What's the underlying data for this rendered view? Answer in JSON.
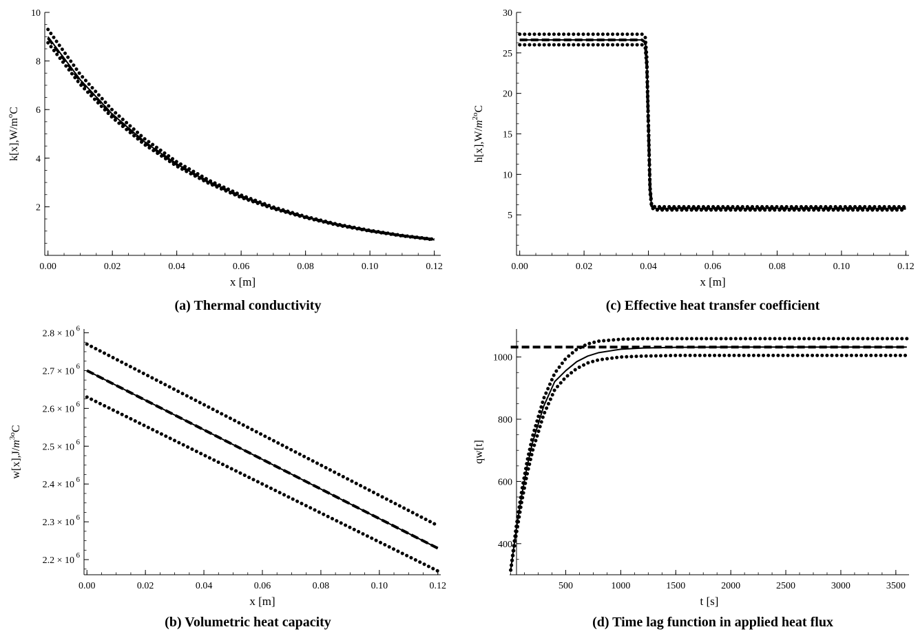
{
  "chart_data": [
    {
      "id": "a",
      "type": "line",
      "caption": "(a)   Thermal conductivity",
      "xlabel": "x [m]",
      "ylabel": "k[x],W/m",
      "ylabel_sup": "o",
      "ylabel_tail": "C",
      "xlim": [
        -0.001,
        0.122
      ],
      "ylim": [
        0.0,
        10.0
      ],
      "xticks": [
        0.0,
        0.02,
        0.04,
        0.06,
        0.08,
        0.1,
        0.12
      ],
      "xtick_labels": [
        "0.00",
        "0.02",
        "0.04",
        "0.06",
        "0.08",
        "0.10",
        "0.12"
      ],
      "yticks": [
        2,
        4,
        6,
        8,
        10
      ],
      "ytick_labels": [
        "2",
        "4",
        "6",
        "8",
        "10"
      ],
      "x": [
        0.0,
        0.01,
        0.02,
        0.03,
        0.04,
        0.05,
        0.06,
        0.07,
        0.08,
        0.09,
        0.1,
        0.11,
        0.12
      ],
      "series": [
        {
          "style": "solid",
          "values": [
            9.0,
            7.23,
            5.81,
            4.67,
            3.75,
            3.02,
            2.43,
            1.95,
            1.57,
            1.26,
            1.01,
            0.81,
            0.65
          ]
        },
        {
          "style": "dashed",
          "values": [
            8.95,
            7.19,
            5.78,
            4.65,
            3.74,
            3.01,
            2.42,
            1.95,
            1.57,
            1.26,
            1.01,
            0.81,
            0.65
          ]
        },
        {
          "style": "dotted",
          "values": [
            9.3,
            7.45,
            5.98,
            4.8,
            3.85,
            3.09,
            2.48,
            1.99,
            1.6,
            1.28,
            1.03,
            0.82,
            0.66
          ]
        },
        {
          "style": "dotted",
          "values": [
            8.75,
            7.04,
            5.67,
            4.56,
            3.67,
            2.96,
            2.38,
            1.92,
            1.55,
            1.24,
            1.0,
            0.8,
            0.64
          ]
        }
      ]
    },
    {
      "id": "c",
      "type": "line",
      "caption": "(c) Effective heat transfer coefficient",
      "xlabel": "x [m]",
      "ylabel": "h[x],W/",
      "ylabel_m": "m",
      "ylabel_sup": "2",
      "ylabel_sup2": "o",
      "ylabel_tail": "C",
      "xlim": [
        -0.001,
        0.121
      ],
      "ylim": [
        0,
        30
      ],
      "xticks": [
        0.0,
        0.02,
        0.04,
        0.06,
        0.08,
        0.1,
        0.12
      ],
      "xtick_labels": [
        "0.00",
        "0.02",
        "0.04",
        "0.06",
        "0.08",
        "0.10",
        "0.12"
      ],
      "yticks": [
        5,
        10,
        15,
        20,
        25,
        30
      ],
      "ytick_labels": [
        "5",
        "10",
        "15",
        "20",
        "25",
        "30"
      ],
      "x": [
        0.0,
        0.038,
        0.039,
        0.0395,
        0.04,
        0.0405,
        0.041,
        0.042,
        0.12
      ],
      "series": [
        {
          "style": "solid",
          "values": [
            26.6,
            26.6,
            26.4,
            24.0,
            16.0,
            8.0,
            6.0,
            5.8,
            5.8
          ]
        },
        {
          "style": "dashed",
          "values": [
            26.6,
            26.6,
            26.3,
            23.5,
            16.0,
            8.3,
            6.1,
            5.8,
            5.8
          ]
        },
        {
          "style": "dotted",
          "values": [
            27.3,
            27.3,
            27.0,
            24.5,
            16.5,
            8.5,
            6.2,
            6.0,
            6.0
          ]
        },
        {
          "style": "dotted",
          "values": [
            26.0,
            26.0,
            25.7,
            23.3,
            15.5,
            7.8,
            5.9,
            5.6,
            5.6
          ]
        }
      ]
    },
    {
      "id": "b",
      "type": "line",
      "caption": "(b) Volumetric heat capacity",
      "xlabel": "x [m]",
      "ylabel": "w[x],J/",
      "ylabel_m": "m",
      "ylabel_sup": "3",
      "ylabel_sup2": "o",
      "ylabel_tail": "C",
      "xlim": [
        -0.001,
        0.121
      ],
      "ylim": [
        2160000,
        2810000
      ],
      "xticks": [
        0.0,
        0.02,
        0.04,
        0.06,
        0.08,
        0.1,
        0.12
      ],
      "xtick_labels": [
        "0.00",
        "0.02",
        "0.04",
        "0.06",
        "0.08",
        "0.10",
        "0.12"
      ],
      "yticks": [
        2200000,
        2300000,
        2400000,
        2500000,
        2600000,
        2700000,
        2800000
      ],
      "ytick_labels": [
        "2.2 × 10",
        "2.3 × 10",
        "2.4 × 10",
        "2.5 × 10",
        "2.6 × 10",
        "2.7 × 10",
        "2.8 × 10"
      ],
      "ytick_exp": "6",
      "x": [
        0.0,
        0.12
      ],
      "series": [
        {
          "style": "solid",
          "values": [
            2700000,
            2230000
          ]
        },
        {
          "style": "dashed",
          "values": [
            2700000,
            2230000
          ]
        },
        {
          "style": "dotted",
          "values": [
            2770000,
            2290000
          ]
        },
        {
          "style": "dotted",
          "values": [
            2630000,
            2170000
          ]
        }
      ]
    },
    {
      "id": "d",
      "type": "line",
      "caption": "(d) Time lag function in applied heat flux",
      "xlabel": "t [s]",
      "ylabel": "qw[t]",
      "xlim": [
        -10,
        3620
      ],
      "ylim": [
        300,
        1090
      ],
      "xticks": [
        500,
        1000,
        1500,
        2000,
        2500,
        3000,
        3500
      ],
      "xtick_labels": [
        "500",
        "1000",
        "1500",
        "2000",
        "2500",
        "3000",
        "3500"
      ],
      "yticks": [
        400,
        600,
        800,
        1000
      ],
      "ytick_labels": [
        "400",
        "600",
        "800",
        "1000"
      ],
      "x": [
        0,
        50,
        100,
        150,
        200,
        300,
        400,
        500,
        600,
        700,
        800,
        1000,
        1200,
        1500,
        2000,
        3600
      ],
      "series": [
        {
          "style": "solid",
          "values": [
            315,
            445,
            555,
            650,
            727,
            842,
            921,
            956,
            985,
            1003,
            1014,
            1025,
            1029,
            1031,
            1032,
            1032
          ]
        },
        {
          "style": "dashed",
          "values": [
            1032,
            1032,
            1032,
            1032,
            1032,
            1032,
            1032,
            1032,
            1032,
            1032,
            1032,
            1032,
            1032,
            1032,
            1032,
            1032
          ]
        },
        {
          "style": "dotted",
          "values": [
            315,
            455,
            570,
            667,
            747,
            867,
            948,
            995,
            1025,
            1042,
            1051,
            1057,
            1059,
            1059,
            1059,
            1059
          ]
        },
        {
          "style": "dotted",
          "values": [
            315,
            430,
            535,
            625,
            700,
            815,
            895,
            935,
            963,
            981,
            991,
            1000,
            1003,
            1005,
            1005,
            1005
          ]
        }
      ]
    }
  ]
}
